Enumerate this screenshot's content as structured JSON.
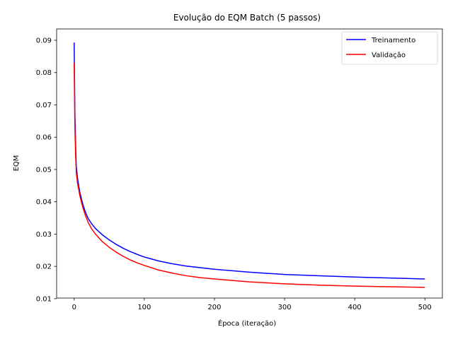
{
  "chart_data": {
    "type": "line",
    "title": "Evolução do EQM Batch (5 passos)",
    "xlabel": "Época (iteração)",
    "ylabel": "EQM",
    "xlim": [
      -25,
      525
    ],
    "ylim": [
      0.0102,
      0.0935
    ],
    "xticks": [
      0,
      100,
      200,
      300,
      400,
      500
    ],
    "yticks": [
      0.01,
      0.02,
      0.03,
      0.04,
      0.05,
      0.06,
      0.07,
      0.08,
      0.09
    ],
    "ytick_labels": [
      "0.01",
      "0.02",
      "0.03",
      "0.04",
      "0.05",
      "0.06",
      "0.07",
      "0.08",
      "0.09"
    ],
    "xtick_labels": [
      "0",
      "100",
      "200",
      "300",
      "400",
      "500"
    ],
    "grid": false,
    "legend_position": "top-right",
    "series": [
      {
        "name": "Treinamento",
        "color": "#0000ff",
        "x": [
          0,
          1,
          2,
          3,
          5,
          8,
          12,
          16,
          20,
          25,
          30,
          40,
          50,
          60,
          70,
          80,
          90,
          100,
          120,
          140,
          160,
          180,
          200,
          250,
          300,
          350,
          400,
          450,
          500
        ],
        "y": [
          0.0893,
          0.068,
          0.058,
          0.051,
          0.047,
          0.043,
          0.0395,
          0.0368,
          0.0348,
          0.0332,
          0.0318,
          0.0298,
          0.0282,
          0.0268,
          0.0256,
          0.0246,
          0.0237,
          0.0229,
          0.0217,
          0.0208,
          0.0201,
          0.0196,
          0.0191,
          0.0182,
          0.0175,
          0.0171,
          0.0167,
          0.0164,
          0.0161
        ]
      },
      {
        "name": "Validação",
        "color": "#ff0000",
        "x": [
          0,
          1,
          2,
          3,
          5,
          8,
          12,
          16,
          20,
          25,
          30,
          40,
          50,
          60,
          70,
          80,
          90,
          100,
          120,
          140,
          160,
          180,
          200,
          250,
          300,
          350,
          400,
          450,
          500
        ],
        "y": [
          0.083,
          0.064,
          0.055,
          0.049,
          0.0455,
          0.042,
          0.0385,
          0.0358,
          0.0336,
          0.0316,
          0.0301,
          0.0277,
          0.0259,
          0.0244,
          0.0231,
          0.022,
          0.0211,
          0.0203,
          0.0189,
          0.0179,
          0.0171,
          0.0165,
          0.0161,
          0.0152,
          0.0146,
          0.0142,
          0.0139,
          0.0137,
          0.0135
        ]
      }
    ]
  }
}
